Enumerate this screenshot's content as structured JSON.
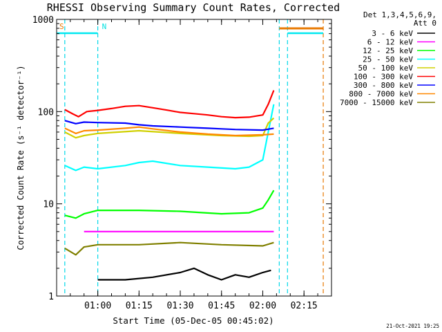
{
  "chart_data": {
    "type": "line",
    "title": "RHESSI Observing Summary Count Rates, Corrected",
    "xlabel": "Start Time (05-Dec-05 00:45:02)",
    "ylabel": "Corrected Count Rate (s⁻¹ detector⁻¹)",
    "yscale": "log",
    "ylim": [
      1,
      1000
    ],
    "xlim": [
      "00:45:02",
      "02:25"
    ],
    "x_ticks": [
      "01:00",
      "01:15",
      "01:30",
      "01:45",
      "02:00",
      "02:15"
    ],
    "y_ticks": [
      "1",
      "10",
      "100",
      "1000"
    ],
    "grid": false,
    "legend_position": "right",
    "legend_header": [
      "Det 1,3,4,5,6,9,",
      "Att 0"
    ],
    "footer_date": "21-Oct-2021 19:25",
    "flags": [
      {
        "label": "S",
        "color": "#e87800"
      },
      {
        "label": "N",
        "color": "#00e0e0"
      }
    ],
    "flag_lines": [
      "00:48",
      "01:00",
      "02:06",
      "02:09",
      "02:22"
    ],
    "series": [
      {
        "name": "3 - 6 keV",
        "color": "#000000",
        "x": [
          "01:00",
          "01:10",
          "01:20",
          "01:30",
          "01:35",
          "01:40",
          "01:45",
          "01:50",
          "01:55",
          "02:00",
          "02:03"
        ],
        "values": [
          1.5,
          1.5,
          1.6,
          1.8,
          2.0,
          1.7,
          1.5,
          1.7,
          1.6,
          1.8,
          1.9
        ]
      },
      {
        "name": "6 - 12 keV",
        "color": "#ff00ff",
        "x": [
          "00:55",
          "01:00",
          "01:15",
          "01:30",
          "01:45",
          "02:00",
          "02:04"
        ],
        "values": [
          5,
          5,
          5,
          5,
          5,
          5,
          5
        ]
      },
      {
        "name": "12 - 25 keV",
        "color": "#00ff00",
        "x": [
          "00:48",
          "00:52",
          "00:55",
          "01:00",
          "01:15",
          "01:30",
          "01:45",
          "01:55",
          "02:00",
          "02:02",
          "02:04"
        ],
        "values": [
          7.5,
          7.0,
          7.8,
          8.5,
          8.5,
          8.3,
          7.8,
          8.0,
          9.0,
          11,
          14
        ]
      },
      {
        "name": "25 - 50 keV",
        "color": "#00ffff",
        "x": [
          "00:48",
          "00:52",
          "00:55",
          "01:00",
          "01:10",
          "01:15",
          "01:20",
          "01:30",
          "01:40",
          "01:50",
          "01:55",
          "02:00",
          "02:02",
          "02:04"
        ],
        "values": [
          26,
          23,
          25,
          24,
          26,
          28,
          29,
          26,
          25,
          24,
          25,
          30,
          60,
          120
        ]
      },
      {
        "name": "50 - 100 keV",
        "color": "#d0d000",
        "x": [
          "00:48",
          "00:52",
          "00:55",
          "01:00",
          "01:15",
          "01:30",
          "01:45",
          "01:55",
          "02:00",
          "02:02",
          "02:04"
        ],
        "values": [
          60,
          52,
          55,
          58,
          62,
          58,
          55,
          54,
          55,
          75,
          85
        ]
      },
      {
        "name": "100 - 300 keV",
        "color": "#ff0000",
        "x": [
          "00:48",
          "00:51",
          "00:53",
          "00:56",
          "01:00",
          "01:05",
          "01:10",
          "01:15",
          "01:20",
          "01:25",
          "01:30",
          "01:35",
          "01:40",
          "01:45",
          "01:50",
          "01:55",
          "02:00",
          "02:02",
          "02:04"
        ],
        "values": [
          105,
          94,
          88,
          100,
          103,
          108,
          114,
          116,
          110,
          104,
          98,
          95,
          92,
          88,
          86,
          87,
          92,
          120,
          170
        ]
      },
      {
        "name": "300 - 800 keV",
        "color": "#0000ff",
        "x": [
          "00:48",
          "00:52",
          "00:55",
          "01:00",
          "01:10",
          "01:15",
          "01:20",
          "01:30",
          "01:40",
          "01:45",
          "01:50",
          "02:00",
          "02:04"
        ],
        "values": [
          80,
          74,
          77,
          76,
          75,
          72,
          70,
          68,
          66,
          65,
          64,
          63,
          66
        ]
      },
      {
        "name": "800 - 7000 keV",
        "color": "#ff8800",
        "x": [
          "00:48",
          "00:52",
          "00:55",
          "01:00",
          "01:10",
          "01:15",
          "01:20",
          "01:30",
          "01:40",
          "01:50",
          "02:00",
          "02:04"
        ],
        "values": [
          66,
          58,
          62,
          63,
          66,
          68,
          65,
          60,
          57,
          55,
          56,
          57
        ]
      },
      {
        "name": "7000 - 15000 keV",
        "color": "#808000",
        "x": [
          "00:48",
          "00:52",
          "00:55",
          "01:00",
          "01:15",
          "01:30",
          "01:45",
          "02:00",
          "02:04"
        ],
        "values": [
          3.3,
          2.8,
          3.4,
          3.6,
          3.6,
          3.8,
          3.6,
          3.5,
          3.8
        ]
      }
    ]
  }
}
